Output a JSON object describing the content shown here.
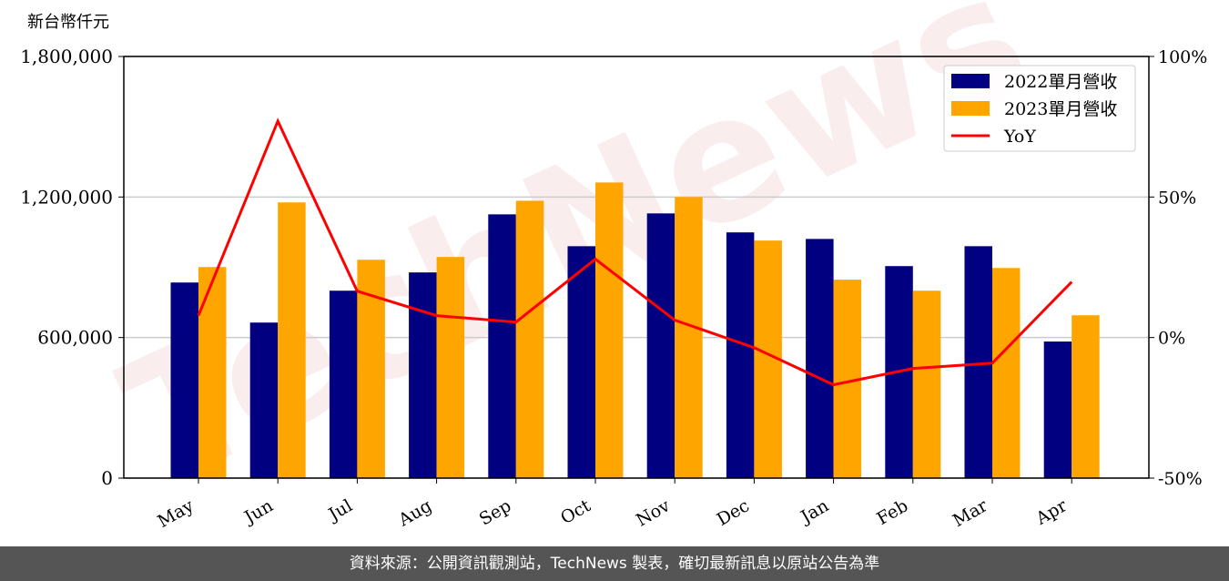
{
  "chart_data": {
    "type": "bar-line",
    "y_label": "新台幣仟元",
    "watermark": "TechNews",
    "categories": [
      "May",
      "Jun",
      "Jul",
      "Aug",
      "Sep",
      "Oct",
      "Nov",
      "Dec",
      "Jan",
      "Feb",
      "Mar",
      "Apr"
    ],
    "series": [
      {
        "name": "2022單月營收",
        "color": "#000080",
        "type": "bar",
        "values": [
          835000,
          664000,
          800000,
          878000,
          1126000,
          990000,
          1130000,
          1049000,
          1021000,
          905000,
          990000,
          583000
        ]
      },
      {
        "name": "2023單月營收",
        "color": "#ffa500",
        "type": "bar",
        "values": [
          901000,
          1177000,
          932000,
          944000,
          1184000,
          1262000,
          1200000,
          1014000,
          847000,
          800000,
          897000,
          695000
        ]
      },
      {
        "name": "YoY",
        "color": "#ff0000",
        "type": "line",
        "axis": "y2",
        "values": [
          7.8,
          77,
          16.5,
          7.8,
          5.5,
          27.9,
          6.2,
          -3.6,
          -16.8,
          -11,
          -9.1,
          19.8
        ]
      }
    ],
    "ylim": [
      0,
      1800000
    ],
    "yticks": [
      0,
      {
        "value": 600000,
        "label": "600,000"
      },
      {
        "value": 1200000,
        "label": "1,200,000"
      },
      {
        "value": 1800000,
        "label": "1,800,000"
      }
    ],
    "y2lim": [
      -50,
      100
    ],
    "y2ticks": [
      {
        "value": -50,
        "label": "-50%"
      },
      {
        "value": 0,
        "label": "0%"
      },
      {
        "value": 50,
        "label": "50%"
      },
      {
        "value": 100,
        "label": "100%"
      }
    ],
    "grid": true,
    "legend": "upper right",
    "footer": "資料來源：公開資訊觀測站，TechNews 製表，確切最新訊息以原站公告為準"
  }
}
